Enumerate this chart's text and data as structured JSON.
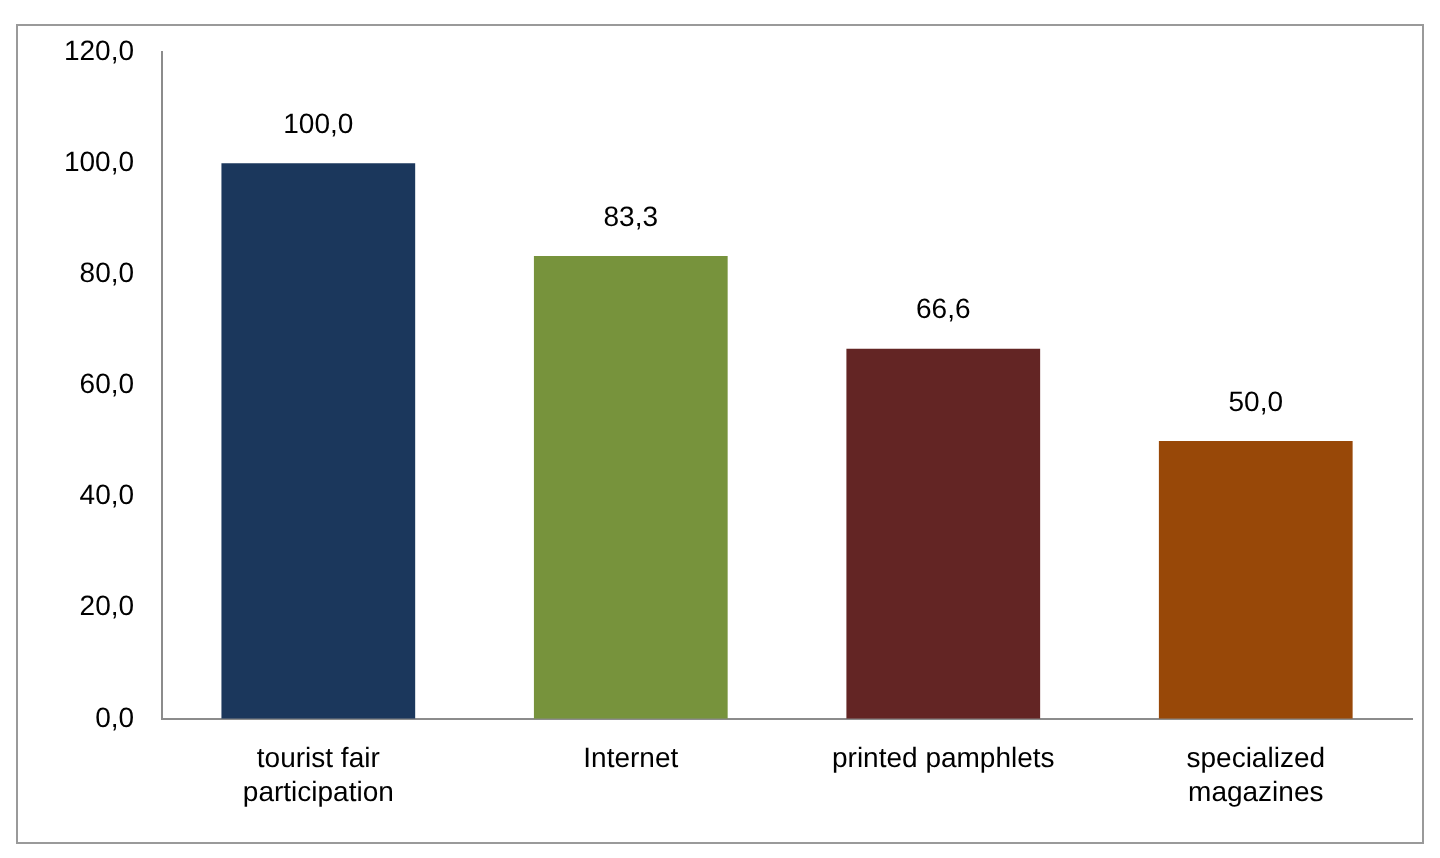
{
  "chart_data": {
    "type": "bar",
    "categories": [
      "tourist fair participation",
      "Internet",
      "printed pamphlets",
      "specialized magazines"
    ],
    "values": [
      100.0,
      83.3,
      66.6,
      50.0
    ],
    "colors": [
      "#1b375c",
      "#77933c",
      "#632524",
      "#984808"
    ],
    "value_labels": [
      "100,0",
      "83,3",
      "66,6",
      "50,0"
    ],
    "ylim": [
      0,
      120
    ],
    "yticks": [
      {
        "value": 0,
        "label": "0,0"
      },
      {
        "value": 20,
        "label": "20,0"
      },
      {
        "value": 40,
        "label": "40,0"
      },
      {
        "value": 60,
        "label": "60,0"
      },
      {
        "value": 80,
        "label": "80,0"
      },
      {
        "value": 100,
        "label": "100,0"
      },
      {
        "value": 120,
        "label": "120,0"
      }
    ],
    "grid": false,
    "legend": false
  }
}
